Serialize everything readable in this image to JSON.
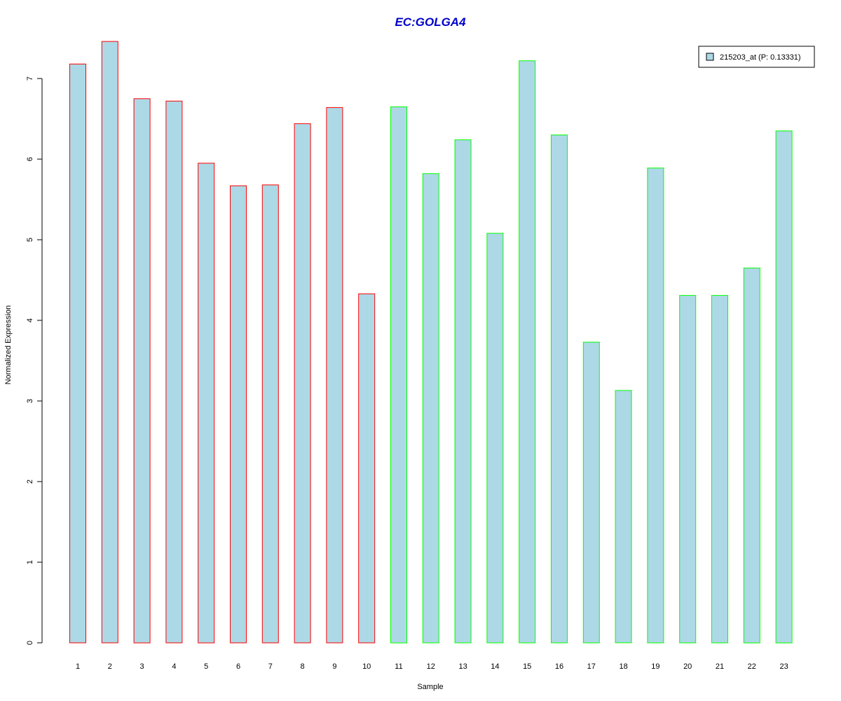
{
  "chart_data": {
    "type": "bar",
    "title": "EC:GOLGA4",
    "xlabel": "Sample",
    "ylabel": "Normalized Expression",
    "ylim": [
      0,
      7.5
    ],
    "y_ticks": [
      "0",
      "1",
      "2",
      "3",
      "4",
      "5",
      "6",
      "7"
    ],
    "categories": [
      "1",
      "2",
      "3",
      "4",
      "5",
      "6",
      "7",
      "8",
      "9",
      "10",
      "11",
      "12",
      "13",
      "14",
      "15",
      "16",
      "17",
      "18",
      "19",
      "20",
      "21",
      "22",
      "23"
    ],
    "values": [
      7.18,
      7.46,
      6.75,
      6.72,
      5.95,
      5.67,
      5.68,
      6.44,
      6.64,
      4.33,
      6.65,
      5.82,
      6.24,
      5.08,
      7.22,
      6.3,
      3.73,
      3.13,
      5.89,
      4.31,
      4.31,
      4.65,
      6.35
    ],
    "group_border_colors": [
      "#ff0000",
      "#ff0000",
      "#ff0000",
      "#ff0000",
      "#ff0000",
      "#ff0000",
      "#ff0000",
      "#ff0000",
      "#ff0000",
      "#ff0000",
      "#00ff00",
      "#00ff00",
      "#00ff00",
      "#00ff00",
      "#00ff00",
      "#00ff00",
      "#00ff00",
      "#00ff00",
      "#00ff00",
      "#00ff00",
      "#00ff00",
      "#00ff00",
      "#00ff00"
    ],
    "bar_fill": "#add8e6",
    "title_color": "#0000cd",
    "legend": {
      "position": "top-right",
      "entries": [
        {
          "label": "215203_at (P: 0.13331)",
          "color": "#add8e6"
        }
      ]
    },
    "grid": false
  }
}
